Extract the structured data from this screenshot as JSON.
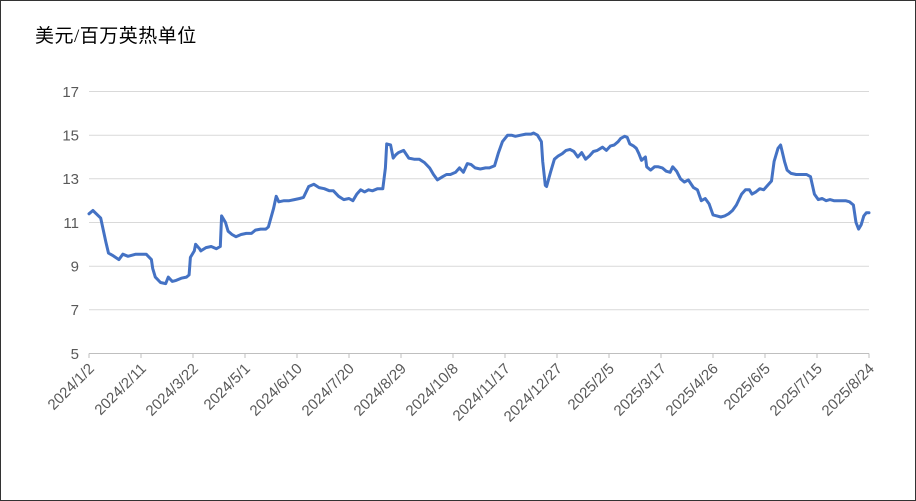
{
  "page": {
    "title": "美元/百万英热单位"
  },
  "colors": {
    "line": "#4472C4",
    "gridline": "#D9D9D9",
    "axis": "#BFBFBF",
    "tick_label": "#595959",
    "title_text": "#000000",
    "background": "#FFFFFF"
  },
  "chart_data": {
    "type": "line",
    "title": "美元/百万英热单位",
    "xlabel": "",
    "ylabel": "美元/百万英热单位",
    "legend": "none",
    "grid": "horizontal",
    "ylim": [
      5,
      17
    ],
    "yticks": [
      5,
      7,
      9,
      11,
      13,
      15,
      17
    ],
    "x_max_day": 600,
    "x_tick_days": [
      0,
      40,
      80,
      120,
      160,
      200,
      240,
      280,
      320,
      360,
      400,
      440,
      480,
      520,
      560,
      600
    ],
    "x_tick_labels": [
      "2024/1/2",
      "2024/2/11",
      "2024/3/22",
      "2024/5/1",
      "2024/6/10",
      "2024/7/20",
      "2024/8/29",
      "2024/10/8",
      "2024/11/17",
      "2024/12/27",
      "2025/2/5",
      "2025/3/17",
      "2025/4/26",
      "2025/6/5",
      "2025/7/15",
      "2025/8/24"
    ],
    "series": [
      {
        "x_days": [
          0,
          3,
          9,
          13,
          15,
          18,
          23,
          26,
          30,
          36,
          44,
          48,
          49,
          51,
          55,
          59,
          61,
          64,
          67,
          71,
          75,
          77,
          78,
          81,
          82,
          85,
          86,
          90,
          94,
          98,
          101,
          102,
          105,
          107,
          110,
          113,
          117,
          121,
          125,
          128,
          132,
          136,
          138,
          142,
          144,
          146,
          150,
          154,
          158,
          162,
          165,
          169,
          173,
          177,
          181,
          185,
          188,
          192,
          196,
          200,
          203,
          206,
          209,
          212,
          215,
          218,
          222,
          226,
          228,
          229,
          232,
          234,
          236,
          238,
          242,
          246,
          250,
          254,
          258,
          262,
          265,
          268,
          272,
          275,
          278,
          282,
          285,
          288,
          291,
          294,
          297,
          301,
          305,
          308,
          312,
          315,
          318,
          322,
          325,
          328,
          332,
          336,
          340,
          342,
          345,
          348,
          349,
          351,
          352,
          355,
          358,
          361,
          364,
          367,
          370,
          373,
          376,
          379,
          382,
          385,
          388,
          391,
          395,
          398,
          401,
          404,
          407,
          409,
          412,
          414,
          416,
          419,
          421,
          423,
          425,
          428,
          429,
          432,
          435,
          438,
          441,
          444,
          447,
          449,
          452,
          455,
          458,
          461,
          465,
          468,
          471,
          474,
          477,
          480,
          483,
          486,
          489,
          492,
          495,
          498,
          502,
          505,
          508,
          510,
          513,
          516,
          519,
          522,
          525,
          527,
          530,
          532,
          533,
          535,
          537,
          540,
          544,
          548,
          552,
          555,
          558,
          561,
          564,
          567,
          570,
          573,
          576,
          579,
          582,
          585,
          588,
          590,
          592,
          594,
          596,
          598,
          600
        ],
        "values": [
          11.4,
          11.55,
          11.2,
          10.1,
          9.6,
          9.5,
          9.3,
          9.55,
          9.45,
          9.55,
          9.55,
          9.3,
          8.9,
          8.5,
          8.25,
          8.2,
          8.5,
          8.3,
          8.35,
          8.45,
          8.5,
          8.6,
          9.4,
          9.7,
          10.0,
          9.8,
          9.7,
          9.85,
          9.9,
          9.8,
          9.9,
          11.3,
          11.0,
          10.6,
          10.45,
          10.35,
          10.45,
          10.5,
          10.5,
          10.65,
          10.7,
          10.7,
          10.8,
          11.65,
          12.2,
          11.95,
          12.0,
          12.0,
          12.05,
          12.1,
          12.15,
          12.65,
          12.75,
          12.6,
          12.55,
          12.45,
          12.45,
          12.2,
          12.05,
          12.1,
          12.0,
          12.3,
          12.5,
          12.4,
          12.5,
          12.45,
          12.55,
          12.55,
          13.5,
          14.6,
          14.55,
          13.95,
          14.1,
          14.2,
          14.3,
          13.95,
          13.9,
          13.9,
          13.75,
          13.5,
          13.2,
          12.95,
          13.1,
          13.2,
          13.2,
          13.3,
          13.5,
          13.3,
          13.7,
          13.65,
          13.5,
          13.45,
          13.5,
          13.5,
          13.6,
          14.2,
          14.7,
          15.0,
          15.0,
          14.95,
          15.0,
          15.05,
          15.05,
          15.1,
          15.0,
          14.7,
          13.8,
          12.7,
          12.65,
          13.3,
          13.9,
          14.05,
          14.15,
          14.3,
          14.35,
          14.25,
          14.0,
          14.2,
          13.9,
          14.05,
          14.25,
          14.3,
          14.45,
          14.3,
          14.5,
          14.55,
          14.7,
          14.85,
          14.95,
          14.9,
          14.6,
          14.5,
          14.4,
          14.15,
          13.85,
          14.0,
          13.55,
          13.4,
          13.55,
          13.55,
          13.5,
          13.35,
          13.3,
          13.55,
          13.35,
          13.0,
          12.85,
          12.95,
          12.6,
          12.5,
          12.0,
          12.1,
          11.85,
          11.35,
          11.3,
          11.25,
          11.3,
          11.4,
          11.55,
          11.8,
          12.3,
          12.5,
          12.5,
          12.3,
          12.4,
          12.55,
          12.5,
          12.7,
          12.9,
          13.8,
          14.4,
          14.55,
          14.3,
          13.8,
          13.4,
          13.25,
          13.2,
          13.2,
          13.2,
          13.1,
          12.3,
          12.05,
          12.1,
          12.0,
          12.05,
          12.0,
          12.0,
          12.0,
          12.0,
          11.95,
          11.8,
          11.0,
          10.7,
          10.9,
          11.3,
          11.45,
          11.45
        ]
      }
    ]
  }
}
